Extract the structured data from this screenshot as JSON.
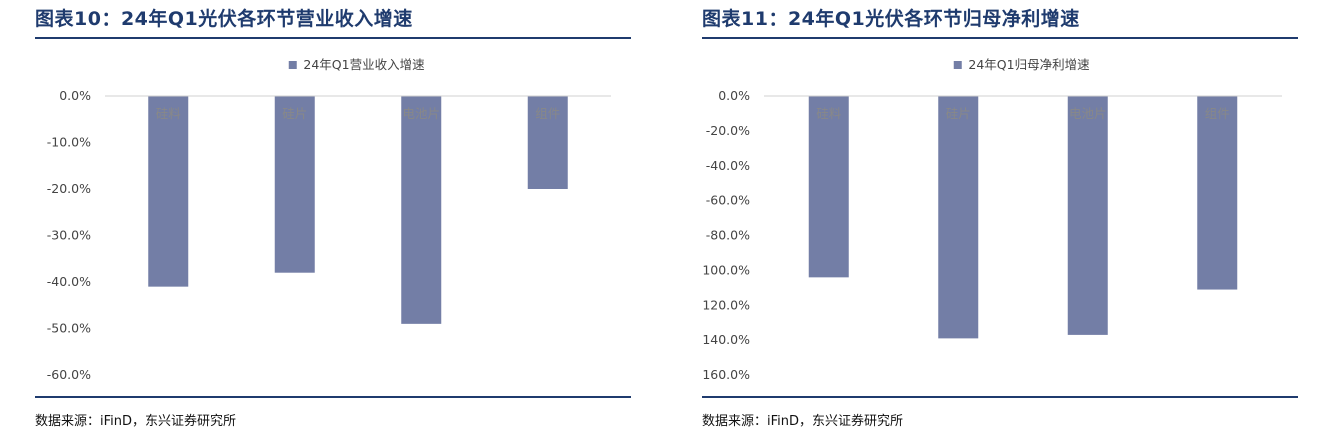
{
  "panels": [
    {
      "title": "图表10：24年Q1光伏各环节营业收入增速",
      "source": "数据来源：iFinD，东兴证券研究所"
    },
    {
      "title": "图表11：24年Q1光伏各环节归母净利增速",
      "source": "数据来源：iFinD，东兴证券研究所"
    }
  ],
  "chart_data": [
    {
      "type": "bar",
      "title": "",
      "categories": [
        "硅料",
        "硅片",
        "电池片",
        "组件"
      ],
      "series": [
        {
          "name": "24年Q1营业收入增速",
          "values": [
            -41.0,
            -38.0,
            -49.0,
            -20.0
          ]
        }
      ],
      "ylim": [
        -60,
        0
      ],
      "yticks": [
        0,
        -10,
        -20,
        -30,
        -40,
        -50,
        -60
      ],
      "ytick_labels": [
        "0.0%",
        "-10.0%",
        "-20.0%",
        "-30.0%",
        "-40.0%",
        "-50.0%",
        "-60.0%"
      ],
      "y_unit": "%",
      "grid": false,
      "legend_position": "top-center",
      "bar_color": "#737ea6"
    },
    {
      "type": "bar",
      "title": "",
      "categories": [
        "硅料",
        "硅片",
        "电池片",
        "组件"
      ],
      "series": [
        {
          "name": "24年Q1归母净利增速",
          "values": [
            -104.0,
            -139.0,
            -137.0,
            -111.0
          ]
        }
      ],
      "ylim": [
        -160,
        0
      ],
      "yticks": [
        0,
        -20,
        -40,
        -60,
        -80,
        -100,
        -120,
        -140,
        -160
      ],
      "ytick_labels": [
        "0.0%",
        "-20.0%",
        "-40.0%",
        "-60.0%",
        "-80.0%",
        "-100.0%",
        "-120.0%",
        "-140.0%",
        "-160.0%"
      ],
      "y_unit": "%",
      "grid": false,
      "legend_position": "top-center",
      "bar_color": "#737ea6"
    }
  ]
}
